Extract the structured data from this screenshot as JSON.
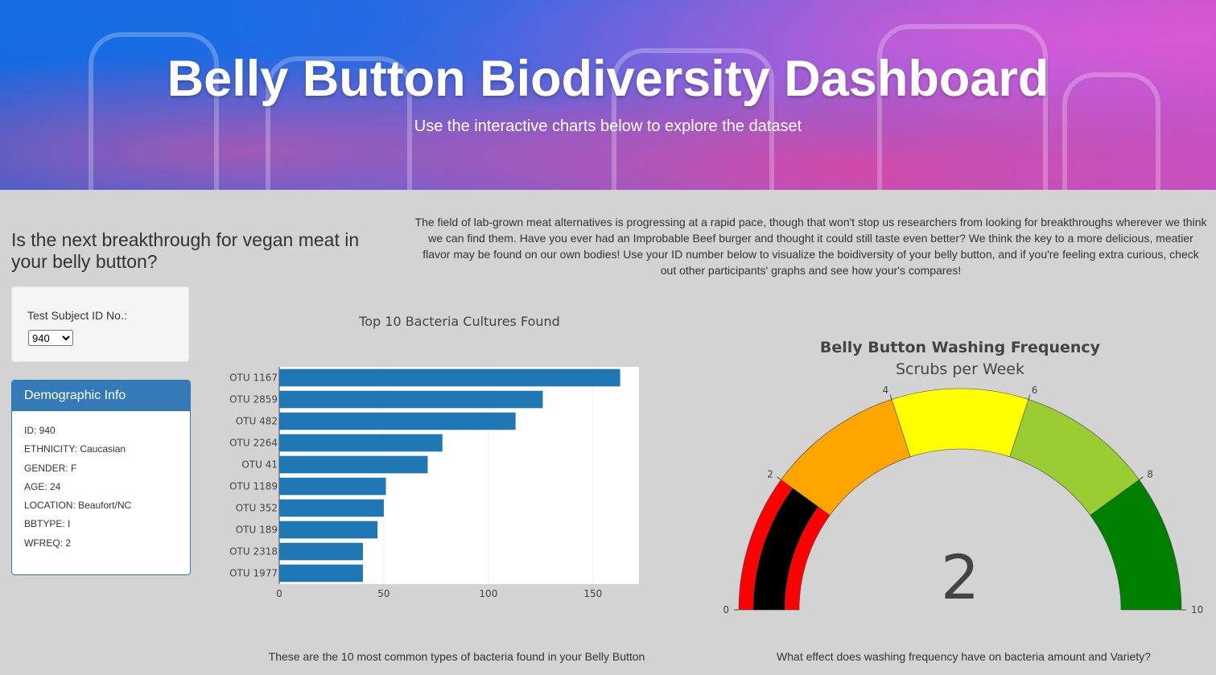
{
  "header": {
    "title": "Belly Button Biodiversity Dashboard",
    "subtitle": "Use the interactive charts below to explore the dataset"
  },
  "question": "Is the next breakthrough for vegan meat in your belly button?",
  "intro": "The field of lab-grown meat alternatives is progressing at a rapid pace, though that won't stop us researchers from looking for breakthroughs wherever we think we can find them. Have you ever had an Improbable Beef burger and thought it could still taste even better? We think the key to a more delicious, meatier flavor may be found on our own bodies! Use your ID number below to visualize the boidiversity of your belly button, and if you're feeling extra curious, check out other participants' graphs and see how your's compares!",
  "selector": {
    "label": "Test Subject ID No.:",
    "selected": "940"
  },
  "demographics": {
    "heading": "Demographic Info",
    "rows": [
      "ID: 940",
      "ETHNICITY: Caucasian",
      "GENDER: F",
      "AGE: 24",
      "LOCATION: Beaufort/NC",
      "BBTYPE: I",
      "WFREQ: 2"
    ]
  },
  "bar_caption": "These are the 10 most common types of bacteria found in your Belly Button",
  "gauge_caption": "What effect does washing frequency have on bacteria amount and Variety?",
  "colors": {
    "bar": "#1f77b4",
    "panel": "#337ab7",
    "gauge_steps": [
      "#ff0000",
      "#ffa500",
      "#ffff00",
      "#9acd32",
      "#008000"
    ],
    "gauge_bar": "#000000"
  },
  "chart_data": [
    {
      "type": "bar",
      "orientation": "horizontal",
      "title": "Top 10 Bacteria Cultures Found",
      "categories": [
        "OTU 1167",
        "OTU 2859",
        "OTU 482",
        "OTU 2264",
        "OTU 41",
        "OTU 1189",
        "OTU 352",
        "OTU 189",
        "OTU 2318",
        "OTU 1977"
      ],
      "values": [
        163,
        126,
        113,
        78,
        71,
        51,
        50,
        47,
        40,
        40
      ],
      "xlim": [
        0,
        172
      ],
      "xticks": [
        "0",
        "50",
        "100",
        "150"
      ],
      "grid": true
    },
    {
      "type": "gauge",
      "title": "Belly Button Washing Frequency",
      "subtitle": "Scrubs per Week",
      "value": 2,
      "range": [
        0,
        10
      ],
      "tick_labels": [
        "0",
        "2",
        "4",
        "6",
        "8",
        "10"
      ],
      "steps": [
        [
          0,
          2
        ],
        [
          2,
          4
        ],
        [
          4,
          6
        ],
        [
          6,
          8
        ],
        [
          8,
          10
        ]
      ]
    }
  ]
}
